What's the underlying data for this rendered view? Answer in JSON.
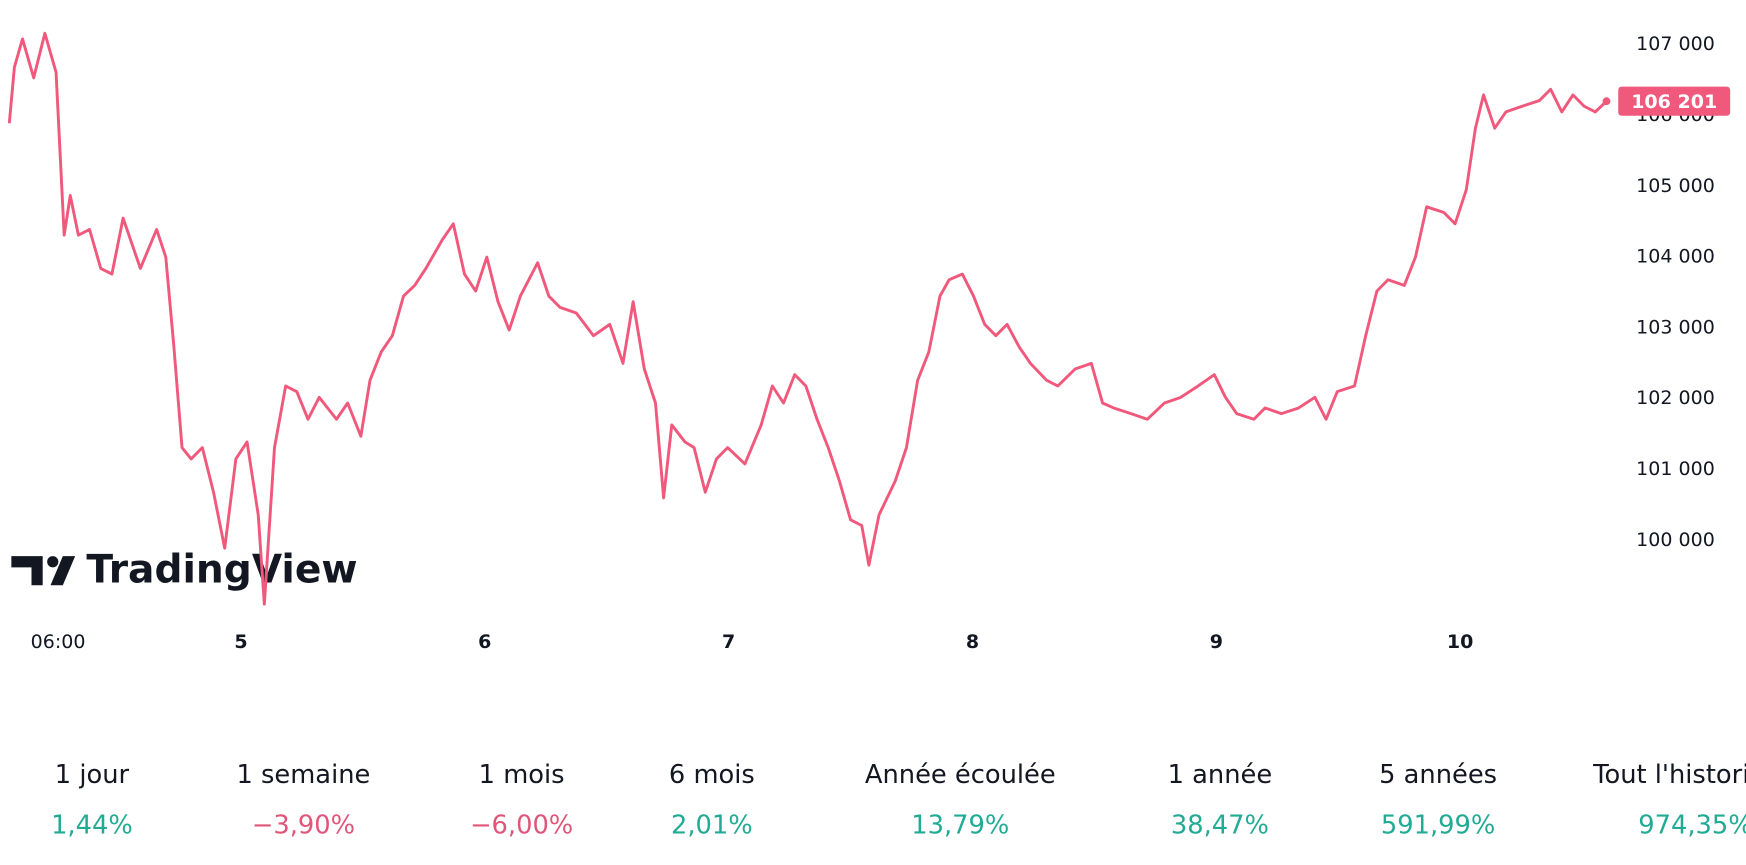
{
  "chart_data": {
    "type": "line",
    "color": "#f0587c",
    "x": [
      1.2,
      1.7,
      2.5,
      3.6,
      4.7,
      5.8,
      6.6,
      7.2,
      8.0,
      9.1,
      10.2,
      11.3,
      12.4,
      14.1,
      15.7,
      16.6,
      17.4,
      18.2,
      19.1,
      20.2,
      21.3,
      22.4,
      23.5,
      24.6,
      25.7,
      26.3,
      27.3,
      28.4,
      29.5,
      30.6,
      31.7,
      33.4,
      34.5,
      35.8,
      36.7,
      37.8,
      38.9,
      40.0,
      41.1,
      42.2,
      43.8,
      44.9,
      46.0,
      47.1,
      48.2,
      49.3,
      50.4,
      51.5,
      53.2,
      54.3,
      55.4,
      57.0,
      58.7,
      60.3,
      61.6,
      62.6,
      63.7,
      64.8,
      65.6,
      66.4,
      67.7,
      68.6,
      69.7,
      70.8,
      71.9,
      73.6,
      75.2,
      76.3,
      77.4,
      78.5,
      79.6,
      80.7,
      81.8,
      82.9,
      84.0,
      85.1,
      85.8,
      86.8,
      88.4,
      89.5,
      90.6,
      91.7,
      92.8,
      93.7,
      95.0,
      96.1,
      97.2,
      98.3,
      99.4,
      100.6,
      101.7,
      103.3,
      104.4,
      106.1,
      107.7,
      108.8,
      109.9,
      111.6,
      113.2,
      114.9,
      116.5,
      118.2,
      119.8,
      120.9,
      122.0,
      123.7,
      124.8,
      126.4,
      128.1,
      129.7,
      130.8,
      131.9,
      133.6,
      134.7,
      135.8,
      136.9,
      138.5,
      139.6,
      140.7,
      142.4,
      143.5,
      144.6,
      145.5,
      146.3,
      147.4,
      148.5,
      150.1,
      151.8,
      152.9,
      154.0,
      155.1,
      156.2,
      157.3,
      158.4
    ],
    "values": [
      105890,
      106680,
      107080,
      106530,
      107160,
      106610,
      104310,
      104870,
      104310,
      104390,
      103840,
      103760,
      104550,
      103840,
      104390,
      104000,
      102730,
      101310,
      101150,
      101310,
      100680,
      99890,
      101150,
      101390,
      100360,
      99100,
      101310,
      102180,
      102100,
      101710,
      102020,
      101710,
      101940,
      101470,
      102260,
      102660,
      102890,
      103450,
      103600,
      103840,
      104240,
      104470,
      103760,
      103520,
      104000,
      103370,
      102970,
      103450,
      103920,
      103450,
      103290,
      103210,
      102890,
      103050,
      102500,
      103370,
      102420,
      101940,
      100600,
      101630,
      101390,
      101310,
      100680,
      101150,
      101310,
      101080,
      101630,
      102180,
      101940,
      102340,
      102180,
      101710,
      101310,
      100840,
      100290,
      100210,
      99650,
      100360,
      100840,
      101310,
      102260,
      102660,
      103450,
      103680,
      103760,
      103450,
      103050,
      102890,
      103050,
      102730,
      102500,
      102260,
      102180,
      102420,
      102500,
      101940,
      101870,
      101790,
      101710,
      101940,
      102020,
      102180,
      102340,
      102020,
      101790,
      101710,
      101870,
      101790,
      101870,
      102020,
      101710,
      102100,
      102180,
      102890,
      103520,
      103680,
      103600,
      104000,
      104710,
      104630,
      104470,
      104950,
      105820,
      106290,
      105820,
      106050,
      106130,
      106210,
      106370,
      106050,
      106290,
      106130,
      106050,
      106201
    ],
    "xlim": [
      0.3,
      160
    ],
    "xticks": [
      {
        "value": 6,
        "label": "06:00"
      },
      {
        "value": 24,
        "label": "5"
      },
      {
        "value": 48,
        "label": "6"
      },
      {
        "value": 72,
        "label": "7"
      },
      {
        "value": 96,
        "label": "8"
      },
      {
        "value": 120,
        "label": "9"
      },
      {
        "value": 144,
        "label": "10"
      }
    ],
    "ylim": [
      98940,
      107630
    ],
    "yticks": [
      {
        "value": 100000,
        "label": "100 000"
      },
      {
        "value": 101000,
        "label": "101 000"
      },
      {
        "value": 102000,
        "label": "102 000"
      },
      {
        "value": 103000,
        "label": "103 000"
      },
      {
        "value": 104000,
        "label": "104 000"
      },
      {
        "value": 105000,
        "label": "105 000"
      },
      {
        "value": 106000,
        "label": "106 000"
      },
      {
        "value": 107000,
        "label": "107 000"
      }
    ],
    "grid": false,
    "last_price": {
      "value": 106201,
      "label": "106 201"
    }
  },
  "watermark": "TradingView",
  "performance": {
    "periods": [
      "1 jour",
      "1 semaine",
      "1 mois",
      "6 mois",
      "Année écoulée",
      "1 année",
      "5 années",
      "Tout l'historique"
    ],
    "values": [
      1.44,
      -3.9,
      -6.0,
      2.01,
      13.79,
      38.47,
      591.99,
      974.35
    ],
    "value_labels": [
      "1,44%",
      "−3,90%",
      "−6,00%",
      "2,01%",
      "13,79%",
      "38,47%",
      "591,99%",
      "974,35%"
    ],
    "positive_color": "#22ab94",
    "negative_color": "#e0567a"
  }
}
